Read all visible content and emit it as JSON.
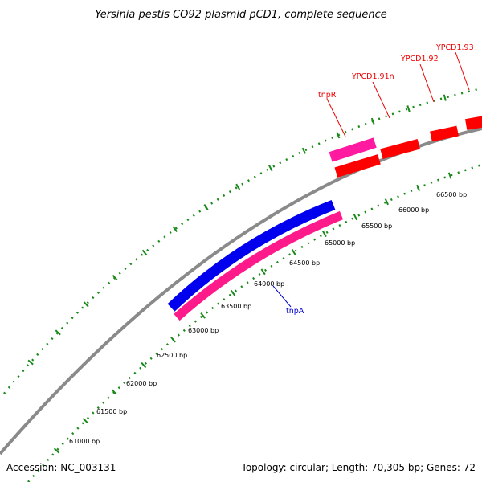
{
  "title": "Yersinia pestis CO92 plasmid pCD1, complete sequence",
  "accession": "Accession: NC_003131",
  "summary": "Topology: circular; Length: 70,305 bp; Genes: 72",
  "colors": {
    "backbone": "#8a8a8a",
    "tick": "#1a8a1a",
    "gene_red": "#ff0000",
    "gene_magenta": "#ff1a8c",
    "gene_blue": "#0000ee",
    "label_red": "#ee0000",
    "label_blue": "#0000cc"
  },
  "bp_ticks": [
    "61000 bp",
    "61500 bp",
    "62000 bp",
    "62500 bp",
    "63000 bp",
    "63500 bp",
    "64000 bp",
    "64500 bp",
    "65000 bp",
    "65500 bp",
    "66000 bp",
    "66500 bp"
  ],
  "genes": [
    {
      "name": "tnpR",
      "color": "#ff0000"
    },
    {
      "name": "YPCD1.91n",
      "color": "#ff0000"
    },
    {
      "name": "YPCD1.92",
      "color": "#ff0000"
    },
    {
      "name": "YPCD1.93",
      "color": "#ff0000"
    },
    {
      "name": "tnpA",
      "color": "#0000cc"
    }
  ]
}
